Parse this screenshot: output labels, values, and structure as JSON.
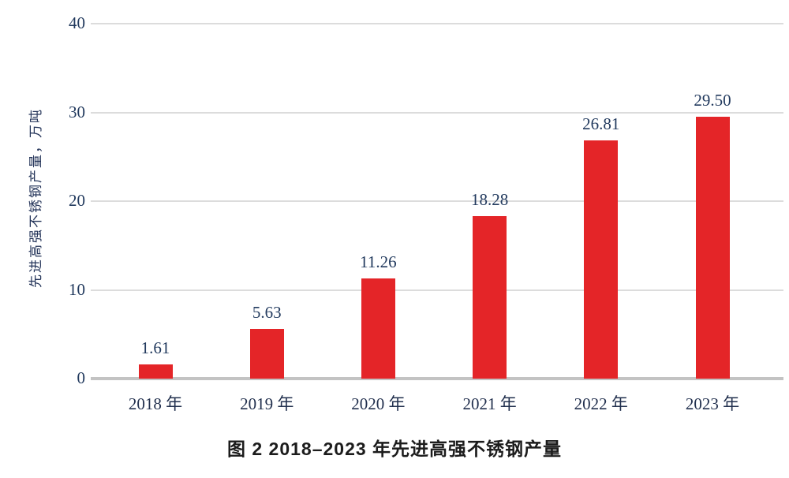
{
  "chart_data": {
    "type": "bar",
    "title": "图 2  2018–2023 年先进高强不锈钢产量",
    "categories": [
      "2018 年",
      "2019 年",
      "2020 年",
      "2021 年",
      "2022 年",
      "2023 年"
    ],
    "values": [
      1.61,
      5.63,
      11.26,
      18.28,
      26.81,
      29.5
    ],
    "value_labels": [
      "1.61",
      "5.63",
      "11.26",
      "18.28",
      "26.81",
      "29.50"
    ],
    "xlabel": "",
    "ylabel": "先进高强不锈钢产量，万吨",
    "ylim": [
      0,
      40
    ],
    "yticks": [
      0,
      10,
      20,
      30,
      40
    ],
    "grid": "horizontal",
    "legend_position": "none",
    "bar_color": "#e42528",
    "label_color": "#223a5e",
    "grid_color": "#dcdcdc",
    "axis_color": "#c3c3c3"
  }
}
